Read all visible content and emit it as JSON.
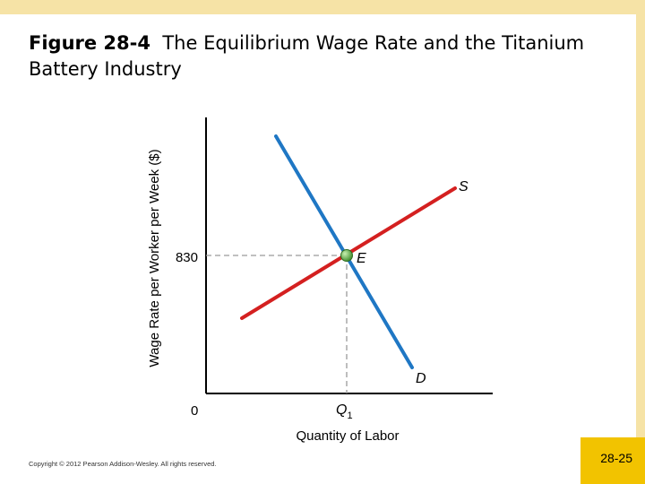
{
  "slide": {
    "title_prefix": "Figure 28-4",
    "title_text": "The Equilibrium Wage Rate and the Titanium Battery Industry",
    "copyright": "Copyright © 2012 Pearson Addison-Wesley. All rights reserved.",
    "page_number": "28-25",
    "colors": {
      "frame": "#f6e3a6",
      "badge": "#f2c300"
    }
  },
  "chart_data": {
    "type": "line",
    "ylabel": "Wage Rate per Worker per Week ($)",
    "xlabel": "Quantity of Labor",
    "origin_label": "0",
    "y_tick": {
      "value": 830,
      "label": "830"
    },
    "x_tick": {
      "label": "Q",
      "subscript": "1"
    },
    "equilibrium_label": "E",
    "series": [
      {
        "name": "S",
        "color": "#d42020",
        "kind": "supply"
      },
      {
        "name": "D",
        "color": "#1f77c4",
        "kind": "demand"
      }
    ],
    "colors": {
      "point": "#5aa83c",
      "guide": "#9a9a9a"
    }
  }
}
